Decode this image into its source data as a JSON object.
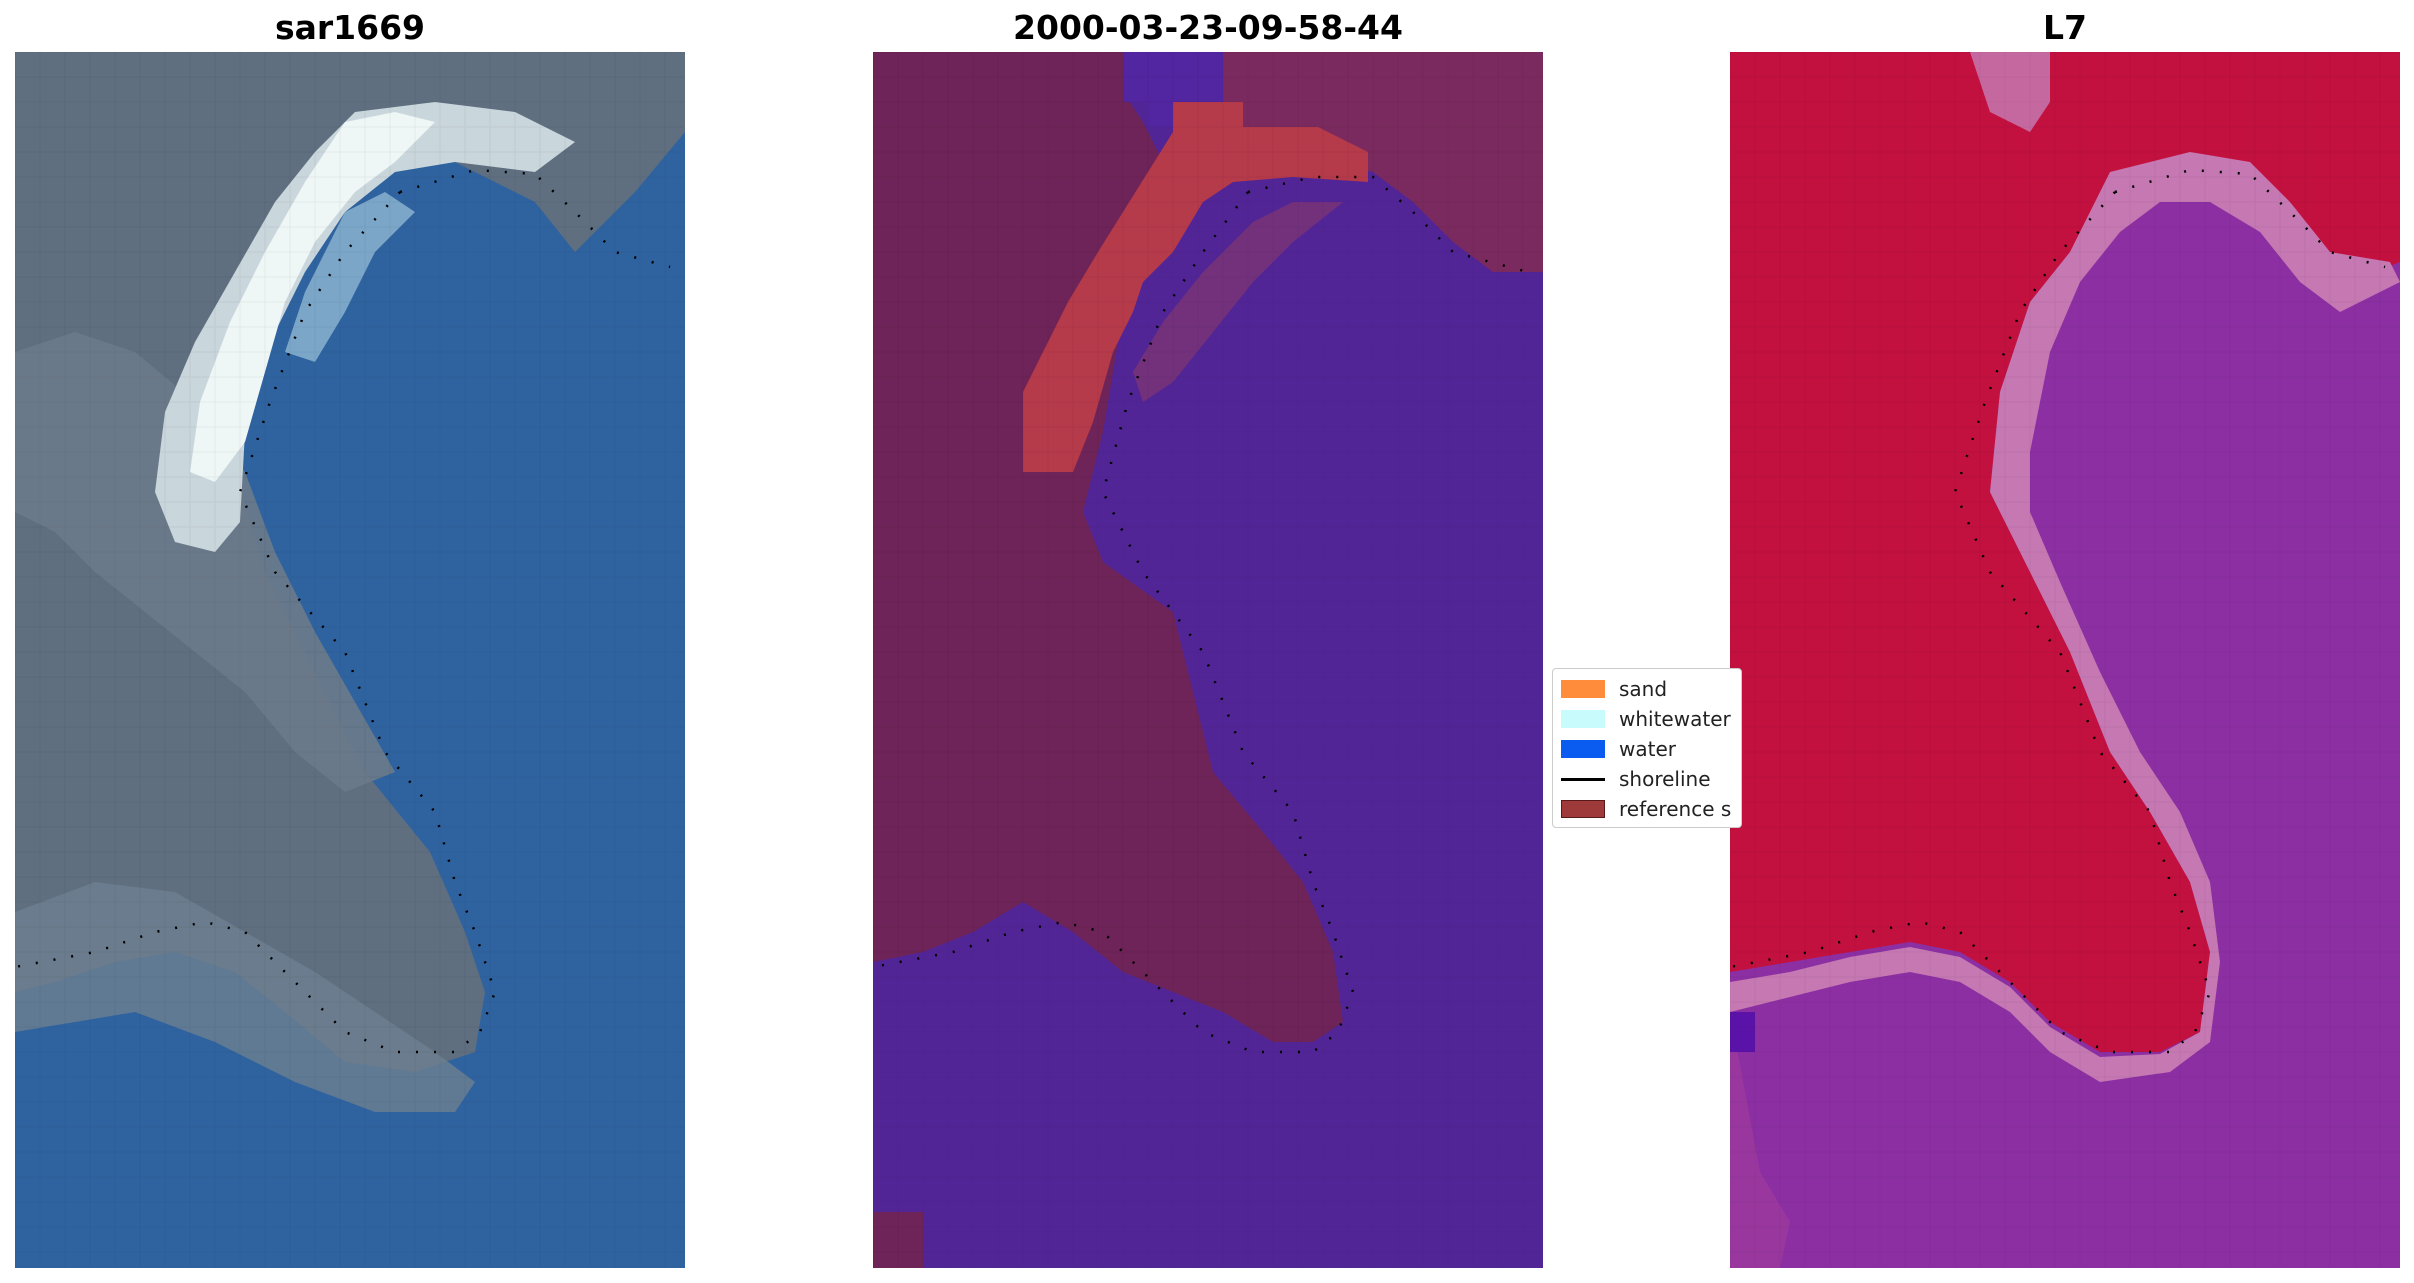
{
  "panels": [
    {
      "title": "sar1669",
      "type": "rgb-image"
    },
    {
      "title": "2000-03-23-09-58-44",
      "type": "classified-image"
    },
    {
      "title": "L7",
      "type": "mndwi-image"
    }
  ],
  "legend": {
    "items": [
      {
        "label": "sand",
        "kind": "patch",
        "color": "#ff8c3a"
      },
      {
        "label": "whitewater",
        "kind": "patch",
        "color": "#c8fbfb"
      },
      {
        "label": "water",
        "kind": "patch",
        "color": "#0a5cf0"
      },
      {
        "label": "shoreline",
        "kind": "line",
        "color": "#000000"
      },
      {
        "label": "reference s",
        "kind": "patch",
        "color": "#9e3a3a"
      }
    ]
  },
  "colors": {
    "rgb_land": "#5f6f80",
    "rgb_water": "#2f63a0",
    "rgb_whitewater": "#e8f2f2",
    "class_land": "#6e2458",
    "class_water": "#522596",
    "class_sand": "#b53a4a",
    "index_land": "#c2113f",
    "index_water": "#8c2fa2",
    "index_edge": "#c678b2",
    "shoreline": "#000000"
  }
}
